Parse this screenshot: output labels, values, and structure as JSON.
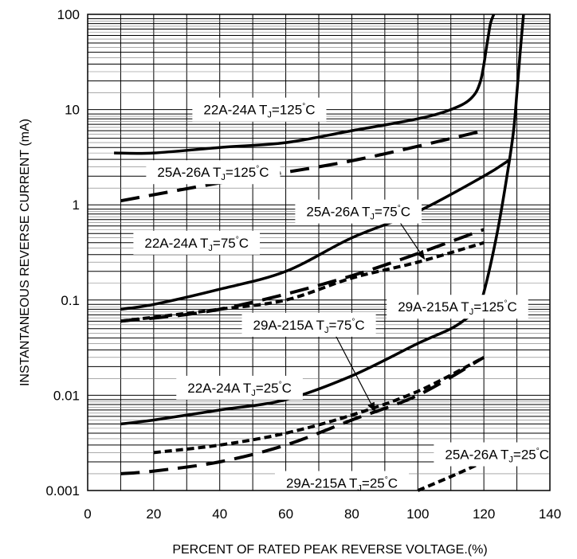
{
  "chart_data": {
    "type": "line",
    "title": "",
    "xlabel": "PERCENT OF RATED PEAK REVERSE VOLTAGE.(%)",
    "ylabel": "INSTANTANEOUS REVERSE CURRENT (mA)",
    "xlim": [
      0,
      140
    ],
    "ylim": [
      0.001,
      100
    ],
    "yscale": "log",
    "grid": true,
    "x_ticks": [
      "0",
      "20",
      "40",
      "60",
      "80",
      "100",
      "120",
      "140"
    ],
    "y_ticks": [
      "0.001",
      "0.01",
      "0.1",
      "1",
      "10",
      "100"
    ],
    "series": [
      {
        "style": "solid",
        "color": "#000000",
        "x": [
          8,
          20,
          40,
          60,
          80,
          100,
          110,
          116,
          119,
          121,
          122,
          123
        ],
        "y": [
          3.5,
          3.5,
          4.0,
          4.5,
          6.0,
          8.0,
          10.0,
          13.0,
          20.0,
          50.0,
          80.0,
          100.0
        ]
      },
      {
        "style": "dashed",
        "color": "#000000",
        "x": [
          10,
          40,
          80,
          120
        ],
        "y": [
          1.1,
          1.7,
          2.9,
          6.0
        ]
      },
      {
        "style": "solid",
        "color": "#000000",
        "x": [
          10,
          20,
          40,
          60,
          80,
          100,
          120,
          128
        ],
        "y": [
          0.08,
          0.09,
          0.13,
          0.2,
          0.45,
          0.85,
          2.0,
          3.0
        ]
      },
      {
        "style": "dashed",
        "color": "#000000",
        "x": [
          10,
          40,
          80,
          120
        ],
        "y": [
          0.06,
          0.08,
          0.18,
          0.55
        ]
      },
      {
        "style": "dotted-dash",
        "color": "#000000",
        "x": [
          10,
          40,
          60,
          80,
          100,
          120
        ],
        "y": [
          0.06,
          0.08,
          0.1,
          0.17,
          0.25,
          0.4
        ]
      },
      {
        "style": "solid",
        "color": "#000000",
        "x": [
          10,
          20,
          40,
          60,
          80,
          100,
          110,
          115,
          118,
          120,
          124,
          127,
          129,
          130,
          131,
          132
        ],
        "y": [
          0.005,
          0.0055,
          0.007,
          0.009,
          0.016,
          0.035,
          0.05,
          0.065,
          0.08,
          0.12,
          0.5,
          2.0,
          6.0,
          15.0,
          40.0,
          100.0
        ]
      },
      {
        "style": "dotted-dash",
        "color": "#000000",
        "x": [
          20,
          40,
          60,
          80,
          100,
          120
        ],
        "y": [
          0.0025,
          0.003,
          0.004,
          0.0062,
          0.011,
          0.025
        ]
      },
      {
        "style": "dashed",
        "color": "#000000",
        "x": [
          10,
          20,
          40,
          60,
          80,
          100,
          120
        ],
        "y": [
          0.0015,
          0.0016,
          0.002,
          0.003,
          0.0055,
          0.01,
          0.025
        ]
      },
      {
        "style": "dotted-dash",
        "color": "#000000",
        "x": [
          100,
          110,
          120
        ],
        "y": [
          0.001,
          0.0014,
          0.002
        ]
      }
    ],
    "annotations": [
      {
        "device": "22A-24A",
        "tj": "=125",
        "unit": "C",
        "x": 52,
        "y": 10
      },
      {
        "device": "25A-26A",
        "tj": "=125",
        "unit": "C",
        "x": 38,
        "y": 2.2
      },
      {
        "device": "25A-26A",
        "tj": "=75",
        "unit": "C",
        "x": 82,
        "y": 0.85
      },
      {
        "device": "22A-24A",
        "tj": "=75",
        "unit": "C",
        "x": 33,
        "y": 0.4
      },
      {
        "device": "29A-215A",
        "tj": "=125",
        "unit": "C",
        "x": 112,
        "y": 0.085
      },
      {
        "device": "29A-215A",
        "tj": "=75",
        "unit": "C",
        "x": 67,
        "y": 0.055
      },
      {
        "device": "22A-24A",
        "tj": "=25",
        "unit": "C",
        "x": 46,
        "y": 0.012
      },
      {
        "device": "25A-26A",
        "tj": "=25",
        "unit": "C",
        "x": 124,
        "y": 0.0024
      },
      {
        "device": "29A-215A",
        "tj": "=25",
        "unit": "C",
        "x": 77,
        "y": 0.0012
      }
    ]
  }
}
